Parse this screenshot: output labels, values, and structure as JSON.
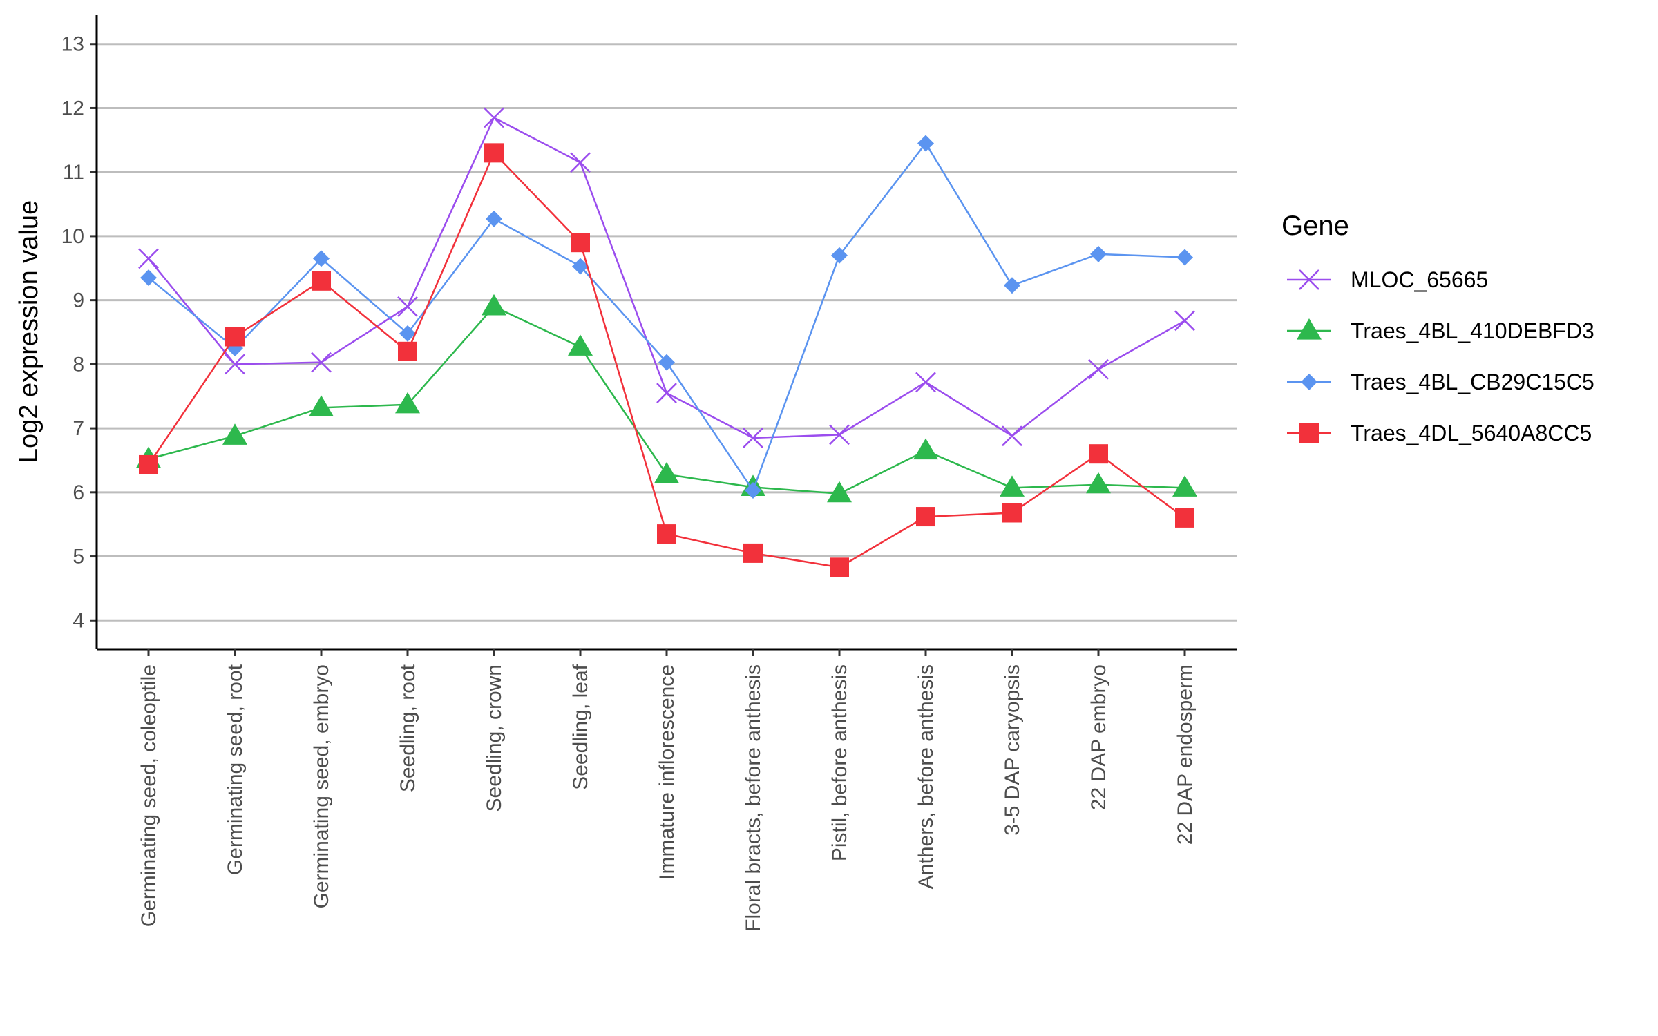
{
  "chart_data": {
    "type": "line",
    "title": "",
    "xlabel": "",
    "ylabel": "Log2 expression value",
    "ylim": [
      3.55,
      13.45
    ],
    "yticks": [
      4,
      5,
      6,
      7,
      8,
      9,
      10,
      11,
      12,
      13
    ],
    "grid": "horizontal major lines",
    "legend_title": "Gene",
    "legend_position": "right",
    "categories": [
      "Germinating seed, coleoptile",
      "Germinating seed, root",
      "Germinating seed, embryo",
      "Seedling, root",
      "Seedling, crown",
      "Seedling, leaf",
      "Immature inflorescence",
      "Floral bracts, before anthesis",
      "Pistil, before anthesis",
      "Anthers, before anthesis",
      "3-5 DAP caryopsis",
      "22 DAP embryo",
      "22 DAP endosperm"
    ],
    "series": [
      {
        "name": "MLOC_65665",
        "color": "#9b4dee",
        "marker": "x",
        "values": [
          9.65,
          8.0,
          8.03,
          8.9,
          11.85,
          11.15,
          7.55,
          6.85,
          6.9,
          7.72,
          6.88,
          7.92,
          8.68
        ]
      },
      {
        "name": "Traes_4BL_410DEBFD3",
        "color": "#2db84d",
        "marker": "triangle",
        "values": [
          6.52,
          6.88,
          7.32,
          7.37,
          8.9,
          8.27,
          6.28,
          6.08,
          5.98,
          6.65,
          6.07,
          6.12,
          6.07
        ]
      },
      {
        "name": "Traes_4BL_CB29C15C5",
        "color": "#5b94f0",
        "marker": "diamond",
        "values": [
          9.35,
          8.25,
          9.65,
          8.48,
          10.27,
          9.53,
          8.03,
          6.03,
          9.7,
          11.45,
          9.23,
          9.72,
          9.67
        ]
      },
      {
        "name": "Traes_4DL_5640A8CC5",
        "color": "#f2313b",
        "marker": "square",
        "values": [
          6.43,
          8.43,
          9.3,
          8.2,
          11.3,
          9.9,
          5.35,
          5.05,
          4.83,
          5.62,
          5.68,
          6.6,
          5.6
        ]
      }
    ]
  }
}
